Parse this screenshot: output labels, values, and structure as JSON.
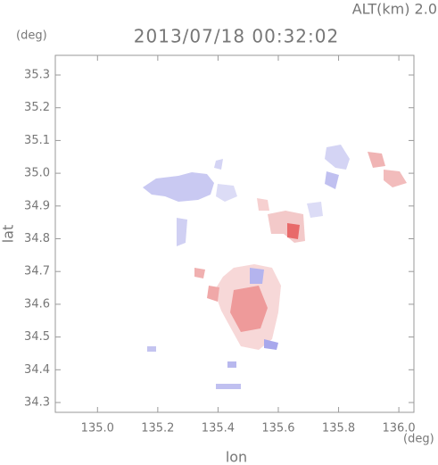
{
  "chart_data": {
    "type": "image",
    "title": "2013/07/18 00:32:02",
    "subtitle": "ALT(km)  2.0",
    "y_unit": "(deg)",
    "x_unit": "(deg)",
    "xlabel": "lon",
    "ylabel": "lat",
    "xlim": [
      134.86,
      136.05
    ],
    "ylim": [
      34.27,
      35.36
    ],
    "xticks": [
      {
        "value": 135,
        "label": "135.0"
      },
      135.2,
      135.4,
      135.6,
      135.8,
      {
        "value": 136,
        "label": "136.0"
      }
    ],
    "yticks": [
      35.3,
      35.2,
      35.1,
      {
        "value": 35,
        "label": "35.0"
      },
      34.9,
      34.8,
      34.7,
      34.6,
      34.5,
      34.4,
      34.3
    ]
  }
}
